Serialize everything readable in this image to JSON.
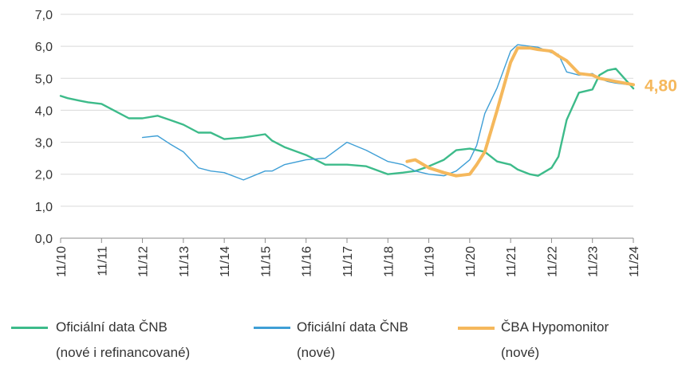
{
  "chart_data": {
    "type": "line",
    "ylim": [
      0,
      7
    ],
    "y_ticks": [
      "0,0",
      "1,0",
      "2,0",
      "3,0",
      "4,0",
      "5,0",
      "6,0",
      "7,0"
    ],
    "x_tick_labels": [
      "11/10",
      "11/11",
      "11/12",
      "11/13",
      "11/14",
      "11/15",
      "11/16",
      "11/17",
      "11/18",
      "11/19",
      "11/20",
      "11/21",
      "11/22",
      "11/23",
      "11/24"
    ],
    "grid": "horizontal",
    "legend_position": "bottom",
    "end_label": "4,80",
    "series": [
      {
        "name_line1": "Oficiální data ČNB",
        "name_line2": "(nové i refinancované)",
        "color": "#3dbb8a",
        "x": [
          2010.83,
          2011.0,
          2011.3,
          2011.5,
          2011.83,
          2012.2,
          2012.5,
          2012.83,
          2013.2,
          2013.5,
          2013.83,
          2014.2,
          2014.5,
          2014.83,
          2015.3,
          2015.83,
          2016.0,
          2016.3,
          2016.83,
          2017.3,
          2017.83,
          2018.3,
          2018.83,
          2019.2,
          2019.5,
          2019.83,
          2020.2,
          2020.5,
          2020.83,
          2021.2,
          2021.5,
          2021.83,
          2022.0,
          2022.3,
          2022.5,
          2022.83,
          2023.0,
          2023.2,
          2023.5,
          2023.83,
          2024.0,
          2024.2,
          2024.4,
          2024.83
        ],
        "values": [
          4.45,
          4.38,
          4.3,
          4.25,
          4.2,
          3.95,
          3.75,
          3.75,
          3.83,
          3.7,
          3.55,
          3.3,
          3.3,
          3.1,
          3.15,
          3.25,
          3.05,
          2.85,
          2.6,
          2.3,
          2.3,
          2.25,
          2.0,
          2.05,
          2.1,
          2.25,
          2.45,
          2.75,
          2.8,
          2.7,
          2.4,
          2.3,
          2.15,
          2.0,
          1.95,
          2.2,
          2.55,
          3.7,
          4.55,
          4.65,
          5.1,
          5.25,
          5.3,
          4.68
        ]
      },
      {
        "name_line1": "Oficiální data ČNB",
        "name_line2": "(nové)",
        "color": "#3f9fd6",
        "x": [
          2012.83,
          2013.2,
          2013.5,
          2013.83,
          2014.2,
          2014.5,
          2014.83,
          2015.3,
          2015.83,
          2016.0,
          2016.3,
          2016.83,
          2017.3,
          2017.83,
          2018.3,
          2018.83,
          2019.2,
          2019.5,
          2019.83,
          2020.2,
          2020.5,
          2020.83,
          2021.0,
          2021.2,
          2021.5,
          2021.83,
          2022.0,
          2022.3,
          2022.5,
          2022.83,
          2023.0,
          2023.2,
          2023.5,
          2023.83,
          2024.0,
          2024.2,
          2024.4,
          2024.83
        ],
        "values": [
          3.15,
          3.2,
          2.95,
          2.7,
          2.2,
          2.1,
          2.05,
          1.82,
          2.1,
          2.1,
          2.3,
          2.45,
          2.5,
          3.0,
          2.75,
          2.4,
          2.3,
          2.1,
          2.0,
          1.95,
          2.1,
          2.45,
          2.9,
          3.9,
          4.7,
          5.85,
          6.05,
          6.0,
          5.97,
          5.8,
          5.75,
          5.2,
          5.1,
          5.15,
          5.0,
          4.9,
          4.85,
          4.78
        ]
      },
      {
        "name_line1": "ČBA Hypomonitor",
        "name_line2": "(nové)",
        "color": "#f5b85c",
        "x": [
          2019.3,
          2019.5,
          2019.83,
          2020.2,
          2020.5,
          2020.83,
          2021.0,
          2021.2,
          2021.5,
          2021.83,
          2022.0,
          2022.3,
          2022.5,
          2022.83,
          2023.0,
          2023.2,
          2023.5,
          2023.83,
          2024.0,
          2024.2,
          2024.4,
          2024.83
        ],
        "values": [
          2.4,
          2.45,
          2.2,
          2.05,
          1.95,
          2.0,
          2.3,
          2.7,
          4.0,
          5.5,
          5.95,
          5.95,
          5.9,
          5.85,
          5.7,
          5.55,
          5.15,
          5.1,
          5.0,
          4.95,
          4.9,
          4.8
        ]
      }
    ]
  }
}
